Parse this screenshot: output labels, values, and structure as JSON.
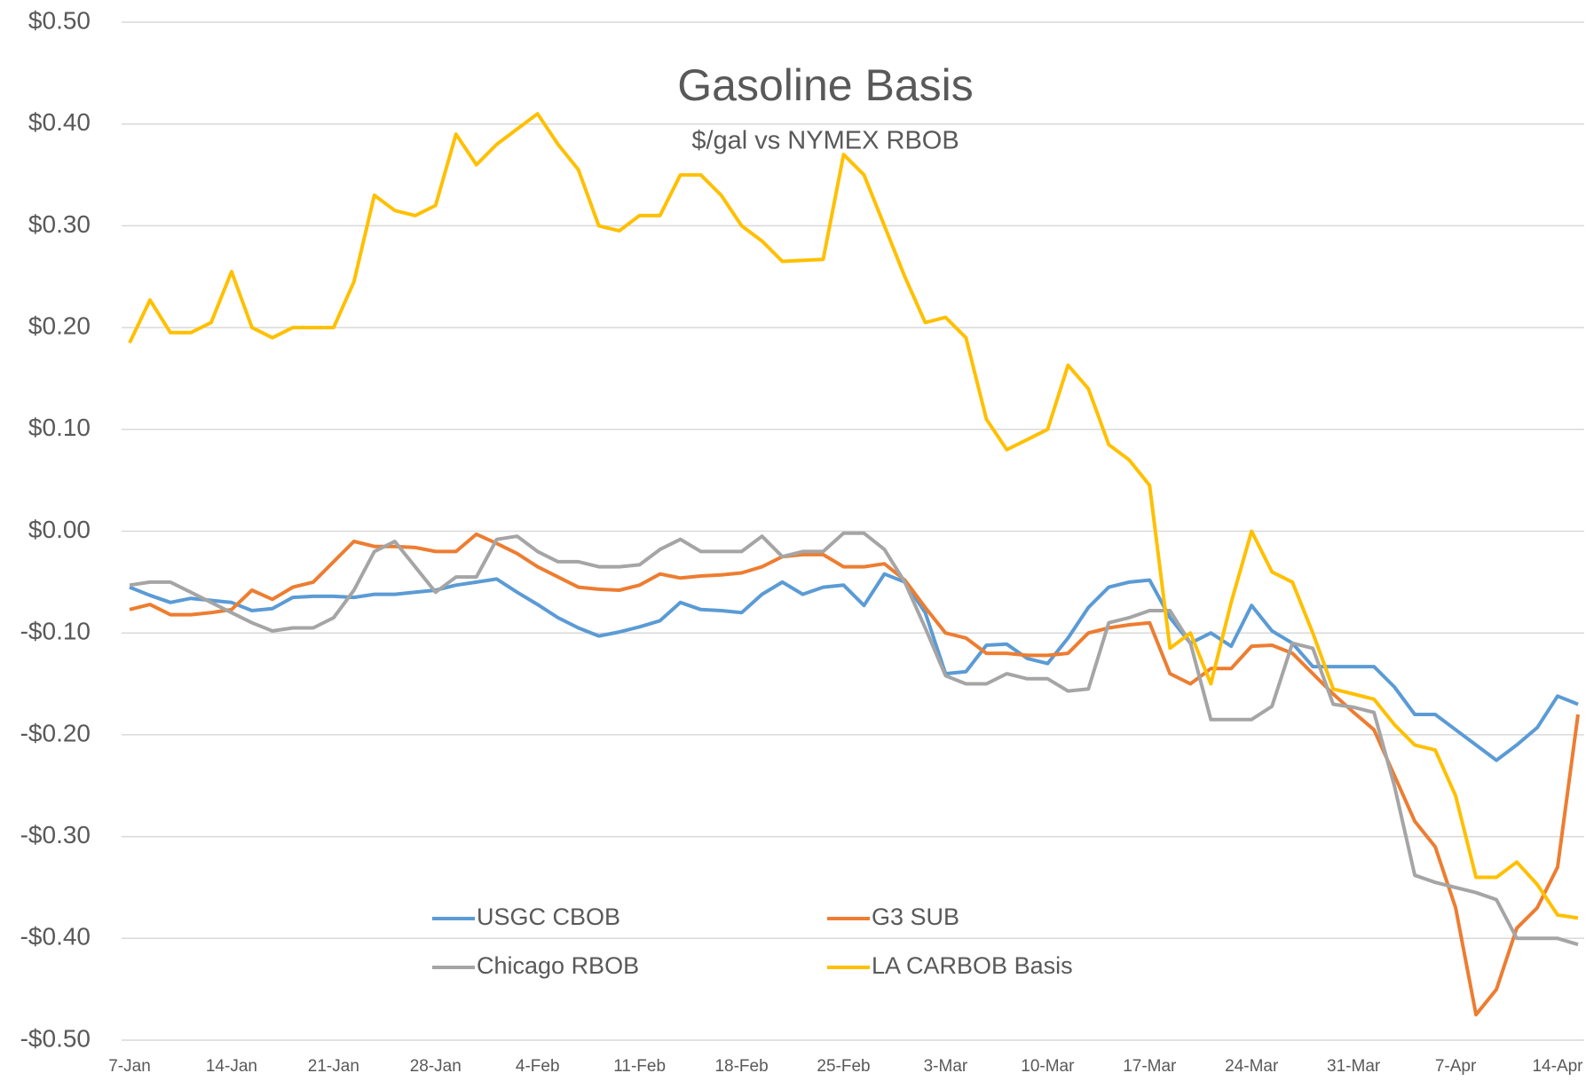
{
  "chart_data": {
    "type": "line",
    "title": "Gasoline Basis",
    "subtitle": "$/gal vs NYMEX RBOB",
    "categories": [
      "7-Jan",
      null,
      null,
      null,
      null,
      "14-Jan",
      null,
      null,
      null,
      null,
      "21-Jan",
      null,
      null,
      null,
      null,
      "28-Jan",
      null,
      null,
      null,
      null,
      "4-Feb",
      null,
      null,
      null,
      null,
      "11-Feb",
      null,
      null,
      null,
      null,
      "18-Feb",
      null,
      null,
      null,
      null,
      "25-Feb",
      null,
      null,
      null,
      null,
      "3-Mar",
      null,
      null,
      null,
      null,
      "10-Mar",
      null,
      null,
      null,
      null,
      "17-Mar",
      null,
      null,
      null,
      null,
      "24-Mar",
      null,
      null,
      null,
      null,
      "31-Mar",
      null,
      null,
      null,
      null,
      "7-Apr",
      null,
      null,
      null,
      null,
      "14-Apr",
      null
    ],
    "series": [
      {
        "name": "USGC CBOB",
        "color": "#5b9bd5",
        "values": [
          -0.055,
          -0.063,
          -0.07,
          -0.066,
          -0.068,
          -0.07,
          -0.078,
          -0.076,
          -0.065,
          -0.064,
          -0.064,
          -0.065,
          -0.062,
          -0.062,
          -0.06,
          -0.058,
          -0.053,
          -0.05,
          -0.047,
          -0.06,
          -0.072,
          -0.085,
          -0.095,
          -0.103,
          -0.099,
          -0.094,
          -0.088,
          -0.07,
          -0.077,
          -0.078,
          -0.08,
          -0.062,
          -0.05,
          -0.062,
          -0.055,
          -0.053,
          -0.073,
          -0.042,
          -0.05,
          -0.08,
          -0.14,
          -0.138,
          -0.112,
          -0.111,
          -0.125,
          -0.13,
          -0.105,
          -0.075,
          -0.055,
          -0.05,
          -0.048,
          -0.085,
          -0.11,
          -0.1,
          -0.113,
          -0.073,
          -0.098,
          -0.11,
          -0.133,
          -0.133,
          -0.133,
          -0.133,
          -0.153,
          -0.18,
          -0.18,
          -0.195,
          -0.21,
          -0.225,
          -0.21,
          -0.193,
          -0.162,
          -0.17
        ]
      },
      {
        "name": "G3 SUB",
        "color": "#ed7d31",
        "values": [
          -0.077,
          -0.072,
          -0.082,
          -0.082,
          -0.08,
          -0.077,
          -0.058,
          -0.067,
          -0.055,
          -0.05,
          -0.03,
          -0.01,
          -0.015,
          -0.015,
          -0.016,
          -0.02,
          -0.02,
          -0.003,
          -0.012,
          -0.022,
          -0.035,
          -0.045,
          -0.055,
          -0.057,
          -0.058,
          -0.053,
          -0.042,
          -0.046,
          -0.044,
          -0.043,
          -0.041,
          -0.035,
          -0.025,
          -0.023,
          -0.023,
          -0.035,
          -0.035,
          -0.032,
          -0.048,
          -0.075,
          -0.1,
          -0.105,
          -0.12,
          -0.12,
          -0.122,
          -0.122,
          -0.12,
          -0.1,
          -0.095,
          -0.092,
          -0.09,
          -0.14,
          -0.15,
          -0.135,
          -0.135,
          -0.113,
          -0.112,
          -0.12,
          -0.14,
          -0.16,
          -0.178,
          -0.195,
          -0.24,
          -0.285,
          -0.31,
          -0.37,
          -0.475,
          -0.45,
          -0.39,
          -0.37,
          -0.33,
          -0.18
        ]
      },
      {
        "name": "Chicago RBOB",
        "color": "#a5a5a5",
        "values": [
          -0.053,
          -0.05,
          -0.05,
          -0.06,
          -0.07,
          -0.08,
          -0.09,
          -0.098,
          -0.095,
          -0.095,
          -0.085,
          -0.058,
          -0.02,
          -0.01,
          -0.035,
          -0.06,
          -0.045,
          -0.045,
          -0.008,
          -0.005,
          -0.02,
          -0.03,
          -0.03,
          -0.035,
          -0.035,
          -0.033,
          -0.018,
          -0.008,
          -0.02,
          -0.02,
          -0.02,
          -0.005,
          -0.025,
          -0.02,
          -0.02,
          -0.002,
          -0.002,
          -0.018,
          -0.05,
          -0.095,
          -0.142,
          -0.15,
          -0.15,
          -0.14,
          -0.145,
          -0.145,
          -0.157,
          -0.155,
          -0.09,
          -0.085,
          -0.078,
          -0.078,
          -0.11,
          -0.185,
          -0.185,
          -0.185,
          -0.172,
          -0.11,
          -0.115,
          -0.17,
          -0.173,
          -0.178,
          -0.25,
          -0.338,
          -0.345,
          -0.35,
          -0.355,
          -0.362,
          -0.4,
          -0.4,
          -0.4,
          -0.406
        ]
      },
      {
        "name": "LA CARBOB Basis",
        "color": "#ffc000",
        "values": [
          0.185,
          0.227,
          0.195,
          0.195,
          0.205,
          0.255,
          0.2,
          0.19,
          0.2,
          0.2,
          0.2,
          0.245,
          0.33,
          0.315,
          0.31,
          0.32,
          0.39,
          0.36,
          0.38,
          0.395,
          0.41,
          0.38,
          0.355,
          0.3,
          0.295,
          0.31,
          0.31,
          0.35,
          0.35,
          0.33,
          0.3,
          0.285,
          0.265,
          0.266,
          0.267,
          0.37,
          0.35,
          0.3,
          0.25,
          0.205,
          0.21,
          0.19,
          0.11,
          0.08,
          0.09,
          0.1,
          0.163,
          0.14,
          0.085,
          0.07,
          0.045,
          -0.115,
          -0.1,
          -0.15,
          -0.07,
          0,
          -0.04,
          -0.05,
          -0.1,
          -0.155,
          -0.16,
          -0.165,
          -0.19,
          -0.21,
          -0.215,
          -0.26,
          -0.34,
          -0.34,
          -0.325,
          -0.347,
          -0.377,
          -0.38
        ]
      }
    ],
    "ylim": [
      -0.5,
      0.5
    ],
    "yticks": [
      {
        "value": -0.5,
        "label": "-$0.50"
      },
      {
        "value": -0.4,
        "label": "-$0.40"
      },
      {
        "value": -0.3,
        "label": "-$0.30"
      },
      {
        "value": -0.2,
        "label": "-$0.20"
      },
      {
        "value": -0.1,
        "label": "-$0.10"
      },
      {
        "value": 0,
        "label": "$0.00"
      },
      {
        "value": 0.1,
        "label": "$0.10"
      },
      {
        "value": 0.2,
        "label": "$0.20"
      },
      {
        "value": 0.3,
        "label": "$0.30"
      },
      {
        "value": 0.4,
        "label": "$0.40"
      },
      {
        "value": 0.5,
        "label": "$0.50"
      }
    ],
    "grid": true
  }
}
